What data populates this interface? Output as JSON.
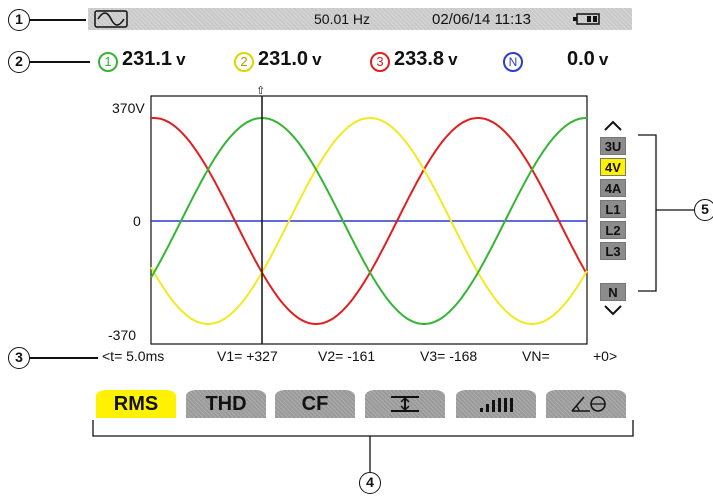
{
  "status_bar": {
    "frequency": "50.01 Hz",
    "datetime": "02/06/14 11:13"
  },
  "callouts": [
    "1",
    "2",
    "3",
    "4",
    "5"
  ],
  "voltages": [
    {
      "phase": "1",
      "value": "231.1",
      "unit": "v",
      "color": "#35b535"
    },
    {
      "phase": "2",
      "value": "231.0",
      "unit": "v",
      "color": "#e0d400"
    },
    {
      "phase": "3",
      "value": "233.8",
      "unit": "v",
      "color": "#e02020"
    },
    {
      "phase": "N",
      "value": "0.0",
      "unit": "v",
      "color": "#2b3bd0"
    }
  ],
  "plot": {
    "y_max_label": "370V",
    "y_zero_label": "0",
    "y_min_label": "-370",
    "ylim": [
      -370,
      370
    ],
    "cursor_marker": "⇧"
  },
  "scope_buttons": [
    {
      "label": "3U",
      "active": false
    },
    {
      "label": "4V",
      "active": true
    },
    {
      "label": "4A",
      "active": false
    },
    {
      "label": "L1",
      "active": false
    },
    {
      "label": "L2",
      "active": false
    },
    {
      "label": "L3",
      "active": false
    },
    {
      "label": "N",
      "active": false
    }
  ],
  "readout": {
    "t": "<t=  5.0ms",
    "v1": "V1= +327",
    "v2": "V2= -161",
    "v3": "V3= -168",
    "vn": "VN=",
    "vn_val": "+0>"
  },
  "tabs": [
    {
      "label": "RMS",
      "active": true
    },
    {
      "label": "THD",
      "active": false
    },
    {
      "label": "CF",
      "active": false
    },
    {
      "label": "",
      "icon": "vertical-range-icon",
      "active": false
    },
    {
      "label": "",
      "icon": "bar-graph-icon",
      "active": false
    },
    {
      "label": "",
      "icon": "phasor-angle-icon",
      "active": false
    }
  ],
  "colors": {
    "phase1": "#35b535",
    "phase2": "#f2ea20",
    "phase3": "#e02020",
    "neutral": "#2b3bd0",
    "highlight": "#fff200"
  }
}
